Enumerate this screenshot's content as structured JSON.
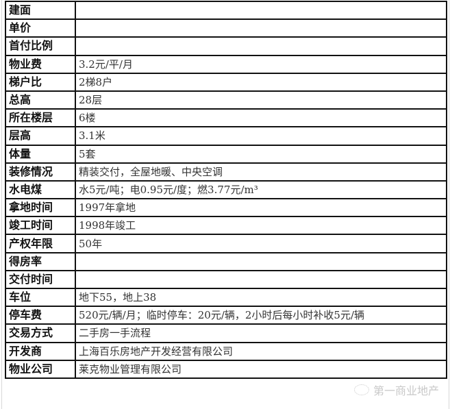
{
  "rows": [
    {
      "label": "建面",
      "value": ""
    },
    {
      "label": "单价",
      "value": ""
    },
    {
      "label": "首付比例",
      "value": ""
    },
    {
      "label": "物业费",
      "value": "3.2元/平/月"
    },
    {
      "label": "梯户比",
      "value": "2梯8户"
    },
    {
      "label": "总高",
      "value": "28层"
    },
    {
      "label": "所在楼层",
      "value": "6楼"
    },
    {
      "label": "层高",
      "value": "3.1米"
    },
    {
      "label": "体量",
      "value": "5套"
    },
    {
      "label": "装修情况",
      "value": "精装交付，全屋地暖、中央空调"
    },
    {
      "label": "水电煤",
      "value": "水5元/吨；电0.95元/度；燃3.77元/m³"
    },
    {
      "label": "拿地时间",
      "value": "1997年拿地"
    },
    {
      "label": "竣工时间",
      "value": "1998年竣工"
    },
    {
      "label": "产权年限",
      "value": "50年"
    },
    {
      "label": "得房率",
      "value": ""
    },
    {
      "label": "交付时间",
      "value": ""
    },
    {
      "label": "车位",
      "value": "地下55，地上38"
    },
    {
      "label": "停车费",
      "value": "520元/辆/月；临时停车：20元/辆，2小时后每小时补收5元/辆"
    },
    {
      "label": "交易方式",
      "value": "二手房一手流程"
    },
    {
      "label": "开发商",
      "value": "上海百乐房地产开发经营有限公司"
    },
    {
      "label": "物业公司",
      "value": "莱克物业管理有限公司"
    }
  ],
  "watermark": {
    "text": "第一商业地产",
    "icon": "wechat-icon"
  }
}
